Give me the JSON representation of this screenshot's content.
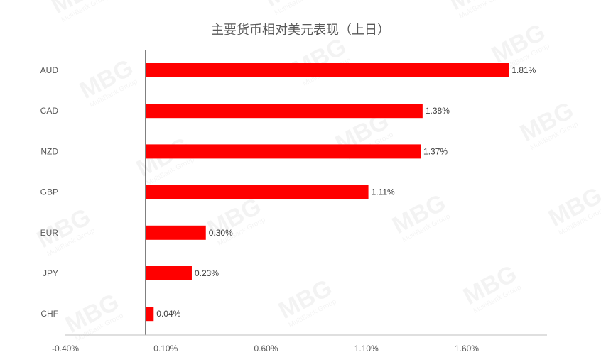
{
  "chart_data": {
    "type": "bar",
    "orientation": "horizontal",
    "title": "主要货币相对美元表现（上日）",
    "categories": [
      "AUD",
      "CAD",
      "NZD",
      "GBP",
      "EUR",
      "JPY",
      "CHF"
    ],
    "values": [
      1.81,
      1.38,
      1.37,
      1.11,
      0.3,
      0.23,
      0.04
    ],
    "data_labels": [
      "1.81%",
      "1.38%",
      "1.37%",
      "1.11%",
      "0.30%",
      "0.23%",
      "0.04%"
    ],
    "x_ticks": [
      -0.4,
      0.1,
      0.6,
      1.1,
      1.6
    ],
    "x_tick_labels": [
      "-0.40%",
      "0.10%",
      "0.60%",
      "1.10%",
      "1.60%"
    ],
    "xlim": [
      -0.4,
      2.0
    ],
    "xlabel": "",
    "ylabel": "",
    "bar_color": "#ff0000",
    "legend": "none",
    "grid": false
  },
  "watermark": {
    "text": "MBG",
    "subtext": "MultiBank Group"
  }
}
